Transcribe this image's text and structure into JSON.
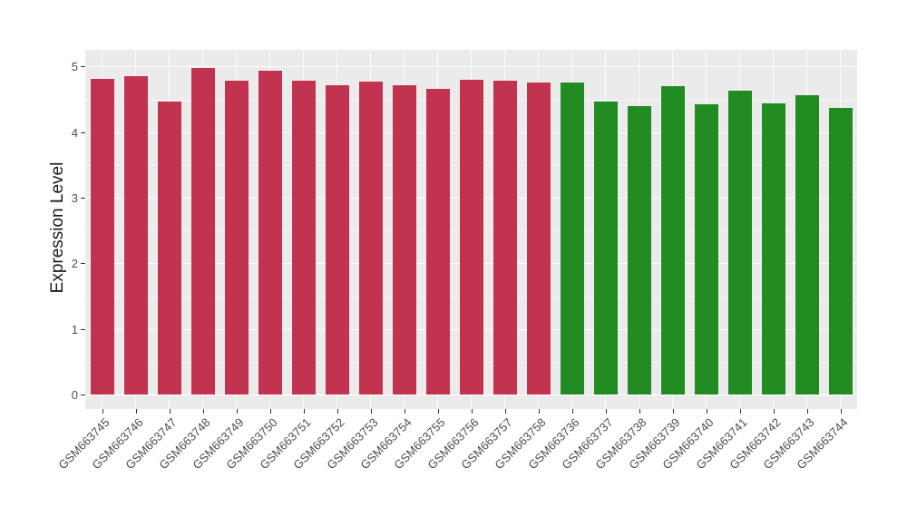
{
  "chart_data": {
    "type": "bar",
    "title": "",
    "xlabel": "",
    "ylabel": "Expression Level",
    "ylim": [
      0,
      5.23
    ],
    "yticks": [
      0,
      1,
      2,
      3,
      4,
      5
    ],
    "grid": "major and minor horizontal white gridlines, vertical white gridlines at category centers",
    "legend_position": "none",
    "panel_background": "#EBEBEB",
    "gridline_color": "#FFFFFF",
    "axis_text_color": "#4D4D4D",
    "axis_title_color": "#1A1A1A",
    "bar_color_group1": "#C23350",
    "bar_color_group2": "#228B22",
    "categories": [
      "GSM663745",
      "GSM663746",
      "GSM663747",
      "GSM663748",
      "GSM663749",
      "GSM663750",
      "GSM663751",
      "GSM663752",
      "GSM663753",
      "GSM663754",
      "GSM663755",
      "GSM663756",
      "GSM663757",
      "GSM663758",
      "GSM663736",
      "GSM663737",
      "GSM663738",
      "GSM663739",
      "GSM663740",
      "GSM663741",
      "GSM663742",
      "GSM663743",
      "GSM663744"
    ],
    "values": [
      4.81,
      4.85,
      4.47,
      4.98,
      4.79,
      4.93,
      4.78,
      4.72,
      4.77,
      4.72,
      4.66,
      4.8,
      4.78,
      4.75,
      4.75,
      4.46,
      4.4,
      4.7,
      4.43,
      4.63,
      4.44,
      4.56,
      4.37
    ],
    "bar_colors": [
      "#C23350",
      "#C23350",
      "#C23350",
      "#C23350",
      "#C23350",
      "#C23350",
      "#C23350",
      "#C23350",
      "#C23350",
      "#C23350",
      "#C23350",
      "#C23350",
      "#C23350",
      "#C23350",
      "#228B22",
      "#228B22",
      "#228B22",
      "#228B22",
      "#228B22",
      "#228B22",
      "#228B22",
      "#228B22",
      "#228B22"
    ]
  }
}
